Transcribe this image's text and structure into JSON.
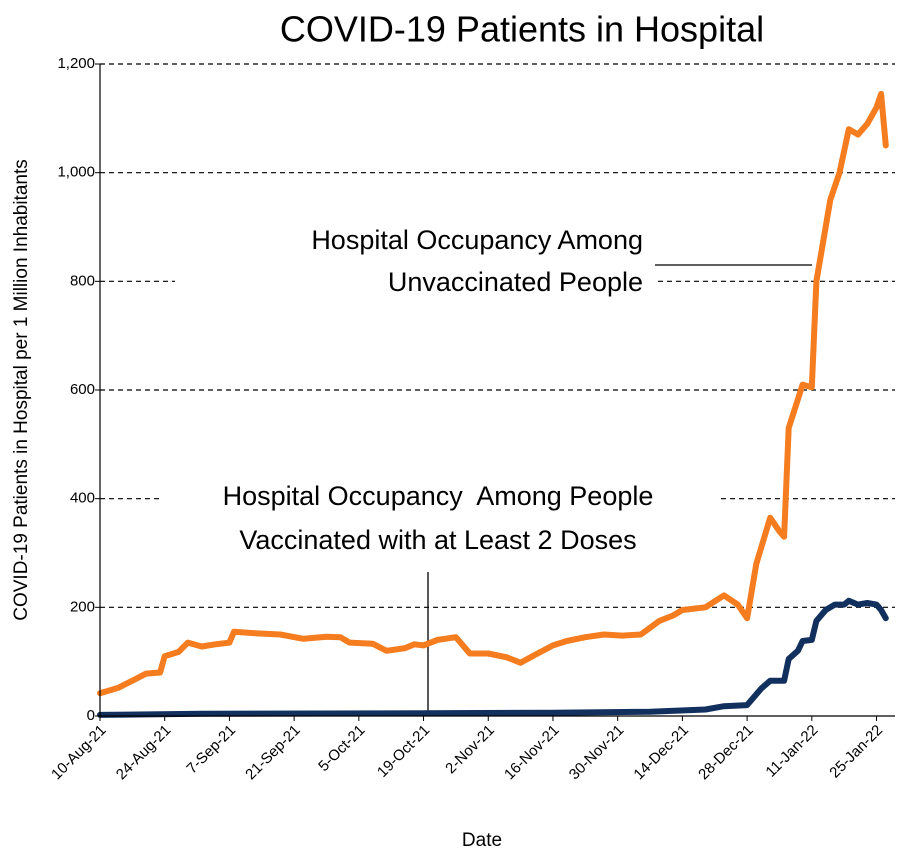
{
  "chart_data": {
    "type": "line",
    "title": "COVID-19 Patients in Hospital",
    "x_label": "Date",
    "y_label": "COVID-19 Patients in Hospital per 1 Million Inhabitants",
    "xlim": [
      "2021-08-10",
      "2022-01-29"
    ],
    "xticks": [
      {
        "value": "2021-08-10",
        "label": "10-Aug-21"
      },
      {
        "value": "2021-08-24",
        "label": "24-Aug-21"
      },
      {
        "value": "2021-09-07",
        "label": "7-Sep-21"
      },
      {
        "value": "2021-09-21",
        "label": "21-Sep-21"
      },
      {
        "value": "2021-10-05",
        "label": "5-Oct-21"
      },
      {
        "value": "2021-10-19",
        "label": "19-Oct-21"
      },
      {
        "value": "2021-11-02",
        "label": "2-Nov-21"
      },
      {
        "value": "2021-11-16",
        "label": "16-Nov-21"
      },
      {
        "value": "2021-11-30",
        "label": "30-Nov-21"
      },
      {
        "value": "2021-12-14",
        "label": "14-Dec-21"
      },
      {
        "value": "2021-12-28",
        "label": "28-Dec-21"
      },
      {
        "value": "2022-01-11",
        "label": "11-Jan-22"
      },
      {
        "value": "2022-01-25",
        "label": "25-Jan-22"
      }
    ],
    "ylim": [
      0,
      1200
    ],
    "yticks": [
      0,
      200,
      400,
      600,
      800,
      {
        "value": 1000,
        "label": "1,000"
      },
      {
        "value": 1200,
        "label": "1,200"
      }
    ],
    "grid": true,
    "series": [
      {
        "name": "Hospital Occupancy Among Unvaccinated People",
        "color": "#f57c1f",
        "x": [
          "2021-08-10",
          "2021-08-14",
          "2021-08-17",
          "2021-08-20",
          "2021-08-23",
          "2021-08-24",
          "2021-08-27",
          "2021-08-29",
          "2021-09-01",
          "2021-09-04",
          "2021-09-07",
          "2021-09-08",
          "2021-09-13",
          "2021-09-18",
          "2021-09-23",
          "2021-09-28",
          "2021-10-01",
          "2021-10-03",
          "2021-10-08",
          "2021-10-11",
          "2021-10-15",
          "2021-10-17",
          "2021-10-19",
          "2021-10-22",
          "2021-10-26",
          "2021-10-29",
          "2021-11-02",
          "2021-11-06",
          "2021-11-09",
          "2021-11-12",
          "2021-11-16",
          "2021-11-19",
          "2021-11-23",
          "2021-11-27",
          "2021-12-01",
          "2021-12-05",
          "2021-12-09",
          "2021-12-12",
          "2021-12-14",
          "2021-12-19",
          "2021-12-23",
          "2021-12-26",
          "2021-12-28",
          "2021-12-30",
          "2022-01-02",
          "2022-01-04",
          "2022-01-05",
          "2022-01-06",
          "2022-01-09",
          "2022-01-11",
          "2022-01-12",
          "2022-01-15",
          "2022-01-17",
          "2022-01-19",
          "2022-01-21",
          "2022-01-23",
          "2022-01-25",
          "2022-01-26",
          "2022-01-27"
        ],
        "values": [
          42,
          52,
          65,
          78,
          80,
          110,
          118,
          135,
          128,
          132,
          135,
          155,
          152,
          150,
          142,
          146,
          145,
          135,
          133,
          120,
          125,
          132,
          130,
          140,
          145,
          115,
          115,
          108,
          98,
          112,
          130,
          138,
          145,
          150,
          148,
          150,
          175,
          185,
          195,
          200,
          222,
          205,
          180,
          280,
          365,
          340,
          330,
          530,
          610,
          605,
          800,
          950,
          1000,
          1080,
          1070,
          1090,
          1120,
          1145,
          1050
        ]
      },
      {
        "name": "Hospital Occupancy  Among People Vaccinated with at Least 2 Doses",
        "color": "#12305e",
        "x": [
          "2021-08-10",
          "2021-09-01",
          "2021-10-19",
          "2021-11-16",
          "2021-12-07",
          "2021-12-19",
          "2021-12-23",
          "2021-12-28",
          "2021-12-31",
          "2022-01-02",
          "2022-01-05",
          "2022-01-06",
          "2022-01-08",
          "2022-01-09",
          "2022-01-11",
          "2022-01-12",
          "2022-01-14",
          "2022-01-16",
          "2022-01-18",
          "2022-01-19",
          "2022-01-21",
          "2022-01-23",
          "2022-01-25",
          "2022-01-26",
          "2022-01-27"
        ],
        "values": [
          2,
          4,
          5,
          6,
          8,
          12,
          18,
          20,
          50,
          65,
          65,
          105,
          120,
          138,
          140,
          175,
          195,
          205,
          205,
          212,
          205,
          208,
          205,
          195,
          180
        ]
      }
    ],
    "annotations": [
      {
        "lines": [
          "Hospital Occupancy Among",
          "Unvaccinated People"
        ]
      },
      {
        "lines": [
          "Hospital Occupancy  Among People",
          "Vaccinated with at Least 2 Doses"
        ]
      }
    ]
  }
}
